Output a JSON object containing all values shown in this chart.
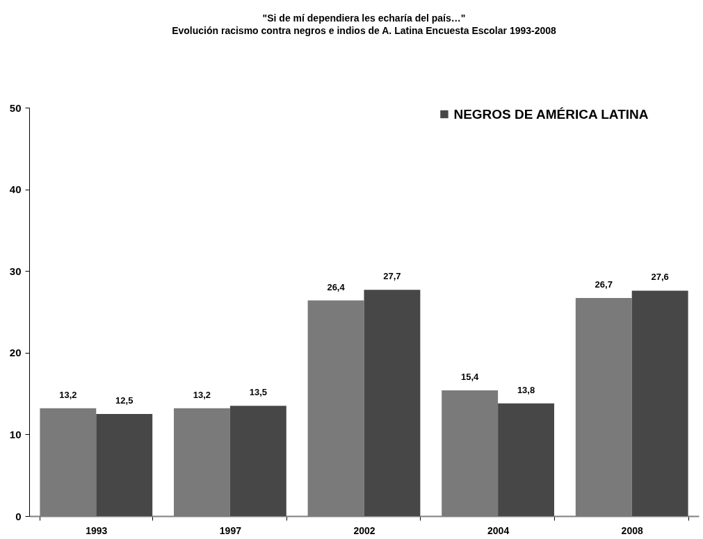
{
  "chart_data": {
    "type": "bar",
    "title": "\"Si de mí dependiera les echaría del país…\"",
    "subtitle": "Evolución racismo contra negros e indios de A. Latina Encuesta Escolar 1993-2008",
    "categories": [
      "1993",
      "1997",
      "2002",
      "2004",
      "2008"
    ],
    "series": [
      {
        "color": "#7a7a7a",
        "values": [
          13.2,
          13.2,
          26.4,
          15.4,
          26.7
        ],
        "value_labels": [
          "13,2",
          "13,2",
          "26,4",
          "15,4",
          "26,7"
        ]
      },
      {
        "name": "NEGROS DE AMÉRICA LATINA",
        "color": "#474747",
        "values": [
          12.5,
          13.5,
          27.7,
          13.8,
          27.6
        ],
        "value_labels": [
          "12,5",
          "13,5",
          "27,7",
          "13,8",
          "27,6"
        ]
      }
    ],
    "ylim": [
      0,
      50
    ],
    "yticks": [
      0,
      10,
      20,
      30,
      40,
      50
    ],
    "grid": false,
    "legend": "top right"
  }
}
